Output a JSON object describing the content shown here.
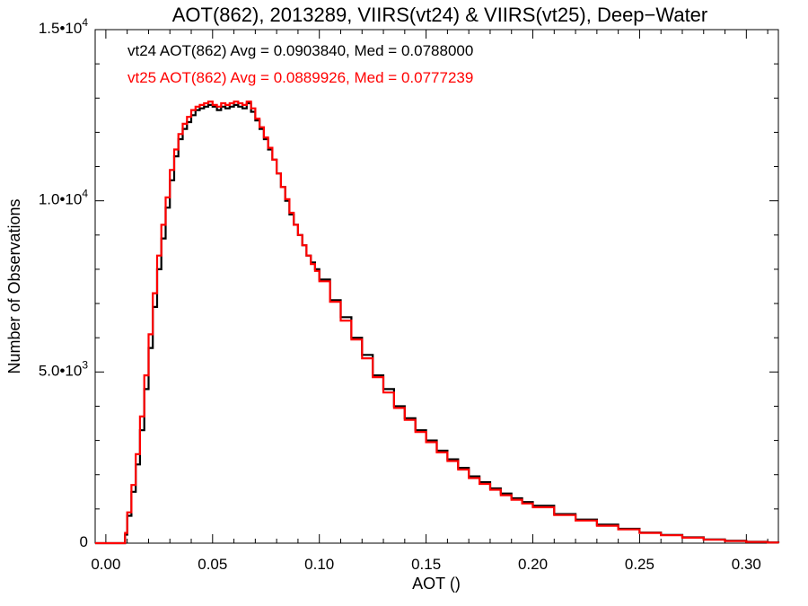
{
  "chart_data": {
    "type": "line",
    "title": "AOT(862), 2013289, VIIRS(vt24) & VIIRS(vt25), Deep−Water",
    "xlabel": "AOT ()",
    "ylabel": "Number of Observations",
    "xlim": [
      -0.005,
      0.315
    ],
    "ylim": [
      0,
      15000
    ],
    "x_ticks": [
      0.0,
      0.05,
      0.1,
      0.15,
      0.2,
      0.25,
      0.3
    ],
    "x_tick_labels": [
      "0.00",
      "0.05",
      "0.10",
      "0.15",
      "0.20",
      "0.25",
      "0.30"
    ],
    "y_ticks": [
      0,
      5000,
      10000,
      15000
    ],
    "y_tick_labels": [
      {
        "mantissa": "0",
        "exponent": ""
      },
      {
        "mantissa": "5.0•10",
        "exponent": "3"
      },
      {
        "mantissa": "1.0•10",
        "exponent": "4"
      },
      {
        "mantissa": "1.5•10",
        "exponent": "4"
      }
    ],
    "grid": false,
    "annotations": [
      {
        "text": "vt24 AOT(862) Avg = 0.0903840, Med = 0.0788000",
        "color": "#000000"
      },
      {
        "text": "vt25 AOT(862) Avg = 0.0889926, Med = 0.0777239",
        "color": "#ff0000"
      }
    ],
    "series": [
      {
        "color": "#000000",
        "x": [
          -0.005,
          0.0085,
          0.009,
          0.01,
          0.012,
          0.014,
          0.016,
          0.018,
          0.02,
          0.022,
          0.024,
          0.026,
          0.028,
          0.03,
          0.032,
          0.034,
          0.036,
          0.038,
          0.04,
          0.042,
          0.044,
          0.046,
          0.048,
          0.05,
          0.052,
          0.054,
          0.056,
          0.058,
          0.06,
          0.062,
          0.064,
          0.066,
          0.068,
          0.07,
          0.072,
          0.074,
          0.076,
          0.078,
          0.08,
          0.082,
          0.084,
          0.086,
          0.088,
          0.09,
          0.092,
          0.094,
          0.096,
          0.098,
          0.1,
          0.105,
          0.11,
          0.115,
          0.12,
          0.125,
          0.13,
          0.135,
          0.14,
          0.145,
          0.15,
          0.155,
          0.16,
          0.165,
          0.17,
          0.175,
          0.18,
          0.185,
          0.19,
          0.195,
          0.2,
          0.21,
          0.22,
          0.23,
          0.24,
          0.25,
          0.26,
          0.27,
          0.28,
          0.29,
          0.3,
          0.31,
          0.315
        ],
        "values": [
          0,
          0,
          250,
          800,
          1500,
          2300,
          3300,
          4500,
          5700,
          6900,
          8000,
          8900,
          9800,
          10600,
          11300,
          11800,
          12100,
          12300,
          12500,
          12650,
          12700,
          12750,
          12800,
          12750,
          12650,
          12750,
          12700,
          12750,
          12800,
          12750,
          12700,
          12850,
          12600,
          12350,
          12100,
          11800,
          11500,
          11200,
          10800,
          10400,
          10000,
          9600,
          9300,
          9000,
          8700,
          8400,
          8200,
          8000,
          7700,
          7100,
          6600,
          6000,
          5500,
          4900,
          4500,
          4000,
          3650,
          3300,
          3000,
          2700,
          2450,
          2200,
          1950,
          1780,
          1600,
          1450,
          1310,
          1200,
          1090,
          850,
          690,
          540,
          420,
          310,
          240,
          170,
          110,
          70,
          40,
          20,
          10
        ]
      },
      {
        "color": "#ff0000",
        "x": [
          -0.005,
          0.0085,
          0.009,
          0.01,
          0.012,
          0.014,
          0.016,
          0.018,
          0.02,
          0.022,
          0.024,
          0.026,
          0.028,
          0.03,
          0.032,
          0.034,
          0.036,
          0.038,
          0.04,
          0.042,
          0.044,
          0.046,
          0.048,
          0.05,
          0.052,
          0.054,
          0.056,
          0.058,
          0.06,
          0.062,
          0.064,
          0.066,
          0.068,
          0.07,
          0.072,
          0.074,
          0.076,
          0.078,
          0.08,
          0.082,
          0.084,
          0.086,
          0.088,
          0.09,
          0.092,
          0.094,
          0.096,
          0.098,
          0.1,
          0.105,
          0.11,
          0.115,
          0.12,
          0.125,
          0.13,
          0.135,
          0.14,
          0.145,
          0.15,
          0.155,
          0.16,
          0.165,
          0.17,
          0.175,
          0.18,
          0.185,
          0.19,
          0.195,
          0.2,
          0.21,
          0.22,
          0.23,
          0.24,
          0.25,
          0.26,
          0.27,
          0.28,
          0.29,
          0.3,
          0.31,
          0.315
        ],
        "values": [
          0,
          0,
          300,
          900,
          1700,
          2600,
          3700,
          4900,
          6100,
          7300,
          8400,
          9300,
          10100,
          10900,
          11500,
          11950,
          12250,
          12450,
          12650,
          12750,
          12800,
          12850,
          12900,
          12800,
          12750,
          12850,
          12800,
          12850,
          12900,
          12850,
          12800,
          12900,
          12700,
          12400,
          12150,
          11850,
          11550,
          11200,
          10800,
          10400,
          10050,
          9650,
          9300,
          9000,
          8700,
          8400,
          8150,
          7950,
          7650,
          7050,
          6500,
          5950,
          5400,
          4850,
          4400,
          3950,
          3600,
          3250,
          2950,
          2650,
          2400,
          2150,
          1900,
          1730,
          1560,
          1400,
          1270,
          1160,
          1050,
          820,
          660,
          510,
          400,
          300,
          230,
          160,
          100,
          60,
          35,
          18,
          8
        ]
      }
    ]
  }
}
